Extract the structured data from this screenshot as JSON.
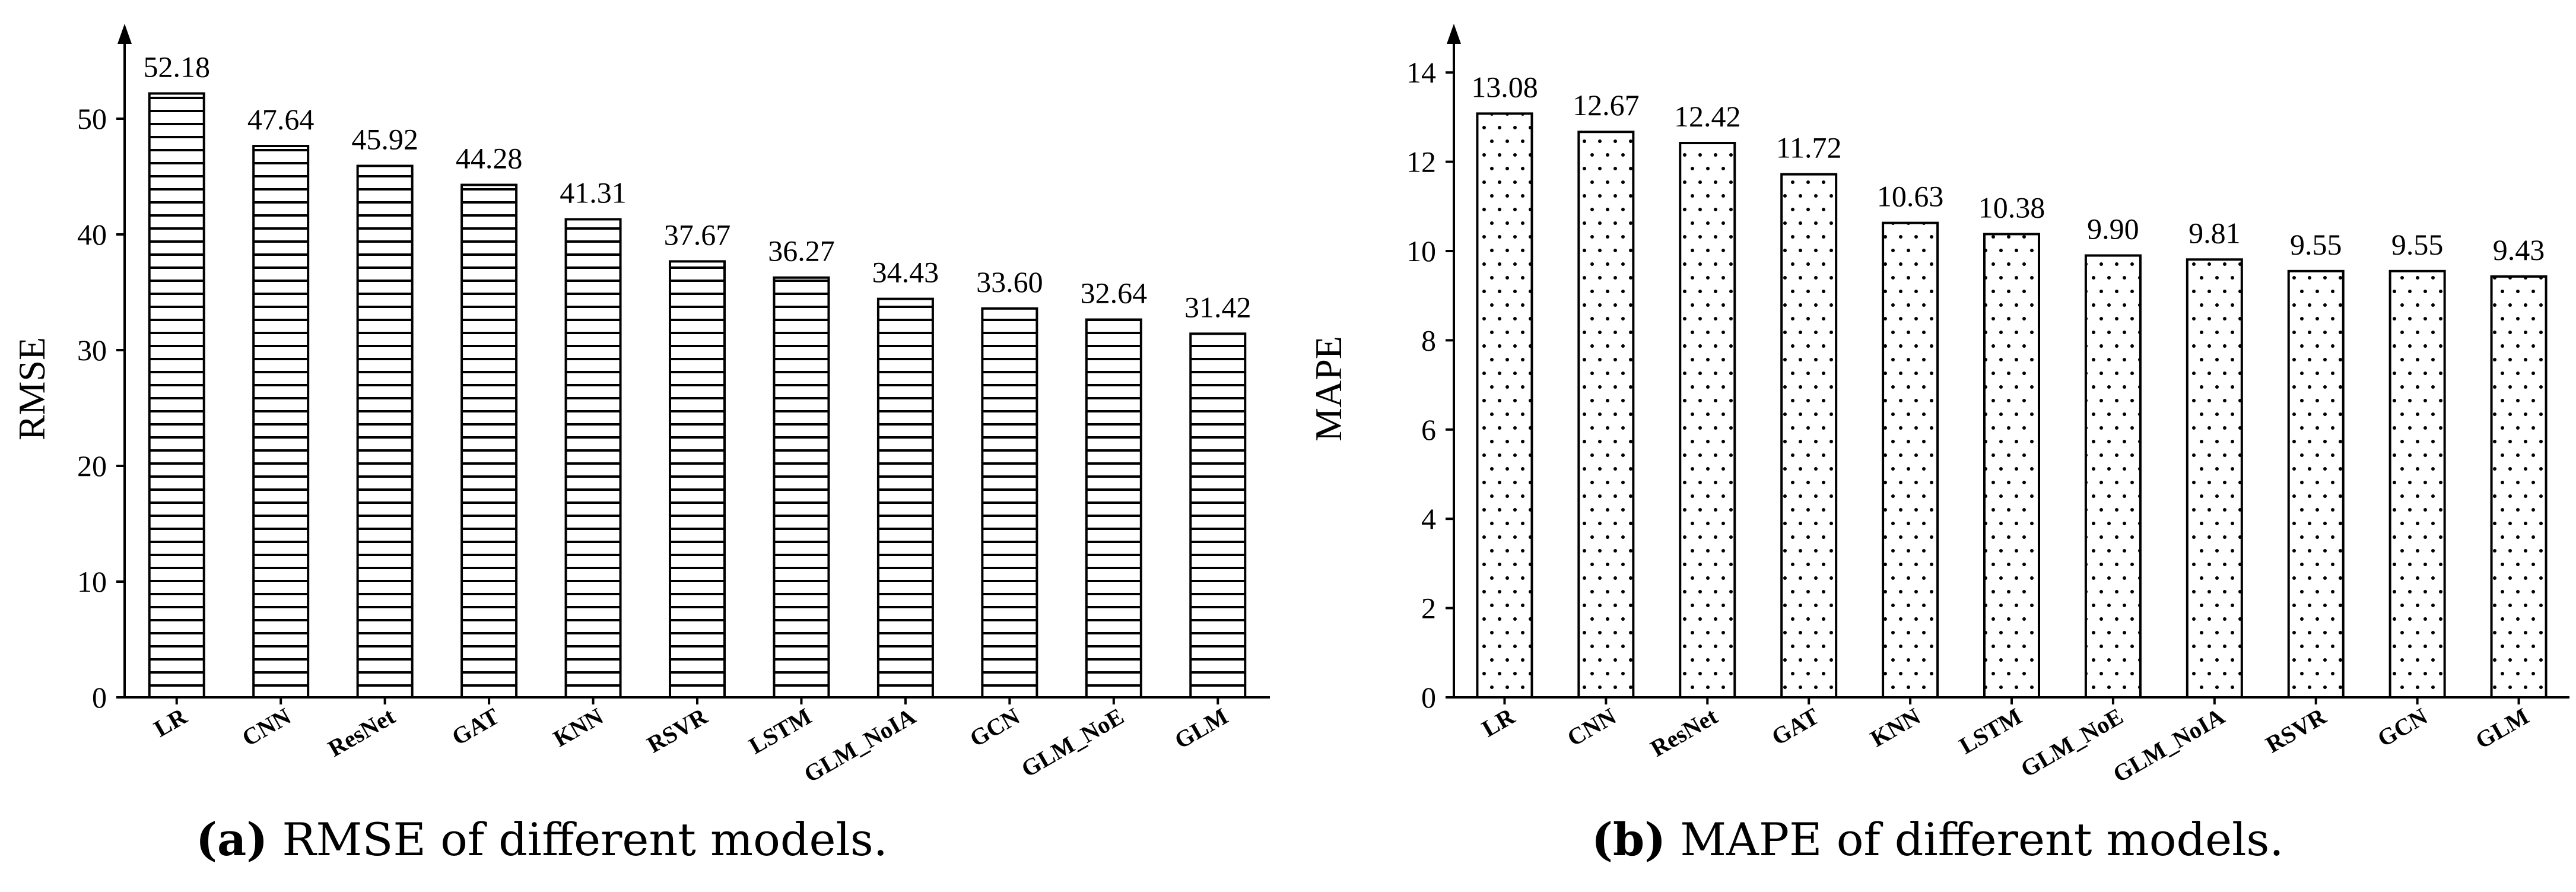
{
  "chart_data": [
    {
      "id": "a",
      "type": "bar",
      "title": "",
      "xlabel": "",
      "ylabel": "RMSE",
      "ylim": [
        0,
        55
      ],
      "yticks": [
        0,
        10,
        20,
        30,
        40,
        50
      ],
      "pattern": "horizontal-stripes",
      "categories": [
        "LR",
        "CNN",
        "ResNet",
        "GAT",
        "KNN",
        "RSVR",
        "LSTM",
        "GLM_NoIA",
        "GCN",
        "GLM_NoE",
        "GLM"
      ],
      "values": [
        52.18,
        47.64,
        45.92,
        44.28,
        41.31,
        37.67,
        36.27,
        34.43,
        33.6,
        32.64,
        31.42
      ],
      "value_labels": [
        "52.18",
        "47.64",
        "45.92",
        "44.28",
        "41.31",
        "37.67",
        "36.27",
        "34.43",
        "33.60",
        "32.64",
        "31.42"
      ],
      "caption_tag": "(a)",
      "caption_text": " RMSE of different models."
    },
    {
      "id": "b",
      "type": "bar",
      "title": "",
      "xlabel": "",
      "ylabel": "MAPE",
      "ylim": [
        0,
        14
      ],
      "yticks": [
        0,
        2,
        4,
        6,
        8,
        10,
        12,
        14
      ],
      "pattern": "dots",
      "categories": [
        "LR",
        "CNN",
        "ResNet",
        "GAT",
        "KNN",
        "LSTM",
        "GLM_NoE",
        "GLM_NoIA",
        "RSVR",
        "GCN",
        "GLM"
      ],
      "values": [
        13.08,
        12.67,
        12.42,
        11.72,
        10.63,
        10.38,
        9.9,
        9.81,
        9.55,
        9.55,
        9.43
      ],
      "value_labels": [
        "13.08",
        "12.67",
        "12.42",
        "11.72",
        "10.63",
        "10.38",
        "9.90",
        "9.81",
        "9.55",
        "9.55",
        "9.43"
      ],
      "caption_tag": "(b)",
      "caption_text": " MAPE of different models."
    }
  ],
  "colors": {
    "ink": "#000000",
    "bar_fill": "#ffffff",
    "background": "#ffffff"
  }
}
